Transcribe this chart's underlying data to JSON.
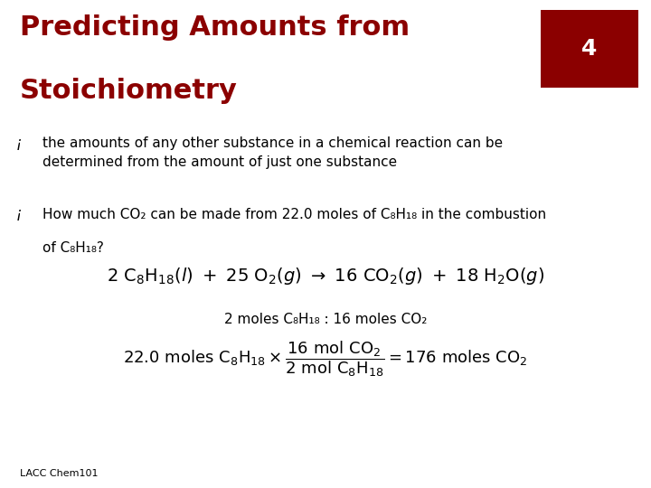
{
  "title_line1": "Predicting Amounts from",
  "title_line2": "Stoichiometry",
  "title_color": "#8B0000",
  "slide_number": "4",
  "slide_number_bg": "#8B0000",
  "slide_number_color": "#FFFFFF",
  "background_color": "#FFFFFF",
  "bullet1": "the amounts of any other substance in a chemical reaction can be\ndetermined from the amount of just one substance",
  "bullet2_line1": "How much CO₂ can be made from 22.0 moles of C₈H₁₈ in the combustion",
  "bullet2_line2": "of C₈H₁₈?",
  "ratio_text": "2 moles C₈H₁₈ : 16 moles CO₂",
  "footer": "LACC Chem101",
  "text_color": "#000000",
  "font_size_title": 22,
  "font_size_body": 11,
  "font_size_equation": 14,
  "font_size_footer": 8
}
